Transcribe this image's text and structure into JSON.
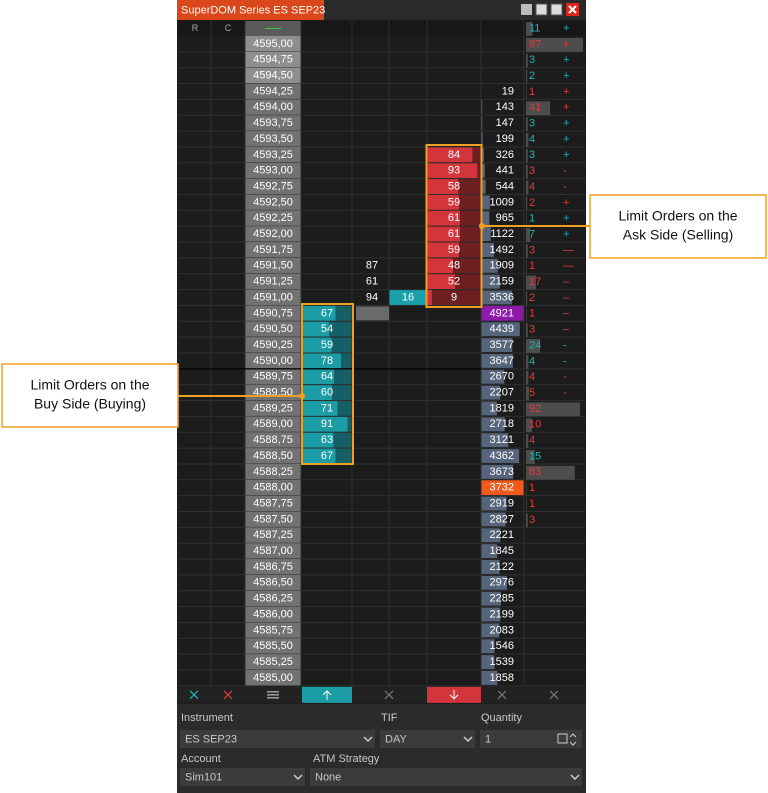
{
  "window": {
    "title": "SuperDOM Series ES SEP23"
  },
  "header": {
    "r": "R",
    "c": "C"
  },
  "rows": [
    {
      "price": "4595,00",
      "price_color": "#8e8e8e"
    },
    {
      "price": "4594,75",
      "price_color": "#8e8e8e"
    },
    {
      "price": "4594,50",
      "price_color": "#8e8e8e"
    },
    {
      "price": "4594,25",
      "volume": 19
    },
    {
      "price": "4594,00",
      "volume": 143
    },
    {
      "price": "4593,75",
      "volume": 147
    },
    {
      "price": "4593,50",
      "volume": 199
    },
    {
      "price": "4593,25",
      "ask": 84,
      "volume": 326
    },
    {
      "price": "4593,00",
      "ask": 93,
      "volume": 441
    },
    {
      "price": "4592,75",
      "ask": 58,
      "volume": 544
    },
    {
      "price": "4592,50",
      "ask": 59,
      "volume": 1009
    },
    {
      "price": "4592,25",
      "ask": 61,
      "volume": 965
    },
    {
      "price": "4592,00",
      "ask": 61,
      "volume": 1122
    },
    {
      "price": "4591,75",
      "ask": 59,
      "volume": 1492
    },
    {
      "price": "4591,50",
      "bid": 87,
      "ask": 48,
      "volume": 1909
    },
    {
      "price": "4591,25",
      "bid": 61,
      "ask": 52,
      "volume": 2159
    },
    {
      "price": "4591,00",
      "bid": 94,
      "level": 16,
      "ask": 9,
      "volume": 3536
    },
    {
      "price": "4590,75",
      "buy": 67,
      "volume": 4921,
      "volume_color": "#8e1aa8"
    },
    {
      "price": "4590,50",
      "buy": 54,
      "volume": 4439
    },
    {
      "price": "4590,25",
      "buy": 59,
      "volume": 3577
    },
    {
      "price": "4590,00",
      "buy": 78,
      "volume": 3647
    },
    {
      "price": "4589,75",
      "buy": 64,
      "volume": 2670
    },
    {
      "price": "4589,50",
      "buy": 60,
      "volume": 2207
    },
    {
      "price": "4589,25",
      "buy": 71,
      "volume": 1819
    },
    {
      "price": "4589,00",
      "buy": 91,
      "volume": 2718
    },
    {
      "price": "4588,75",
      "buy": 63,
      "volume": 3121
    },
    {
      "price": "4588,50",
      "buy": 67,
      "volume": 4362
    },
    {
      "price": "4588,25",
      "volume": 3673
    },
    {
      "price": "4588,00",
      "volume": 3732,
      "volume_color": "#f05a1a"
    },
    {
      "price": "4587,75",
      "volume": 2919
    },
    {
      "price": "4587,50",
      "volume": 2827
    },
    {
      "price": "4587,25",
      "volume": 2221
    },
    {
      "price": "4587,00",
      "volume": 1845
    },
    {
      "price": "4586,75",
      "volume": 2122
    },
    {
      "price": "4586,50",
      "volume": 2976
    },
    {
      "price": "4586,25",
      "volume": 2285
    },
    {
      "price": "4586,00",
      "volume": 2199
    },
    {
      "price": "4585,75",
      "volume": 2083
    },
    {
      "price": "4585,50",
      "volume": 1546
    },
    {
      "price": "4585,25",
      "volume": 1539
    },
    {
      "price": "4585,00",
      "volume": 1858
    }
  ],
  "trades": [
    {
      "count": 11,
      "sign": "+",
      "color": "#1fb5b5"
    },
    {
      "count": 97,
      "sign": "+",
      "color": "#e03c3c"
    },
    {
      "count": 3,
      "sign": "+",
      "color": "#1fb5b5"
    },
    {
      "count": 2,
      "sign": "+",
      "color": "#1fb5b5"
    },
    {
      "count": 1,
      "sign": "+",
      "color": "#e03c3c"
    },
    {
      "count": 41,
      "sign": "+",
      "color": "#e03c3c"
    },
    {
      "count": 3,
      "sign": "+",
      "color": "#1fb5b5"
    },
    {
      "count": 4,
      "sign": "+",
      "color": "#1fb5b5"
    },
    {
      "count": 3,
      "sign": "+",
      "color": "#1fb5b5"
    },
    {
      "count": 3,
      "sign": "-",
      "color": "#e03c3c"
    },
    {
      "count": 4,
      "sign": "-",
      "color": "#e03c3c"
    },
    {
      "count": 2,
      "sign": "+",
      "color": "#e03c3c"
    },
    {
      "count": 1,
      "sign": "+",
      "color": "#1fb5b5"
    },
    {
      "count": 7,
      "sign": "+",
      "color": "#1fb5b5"
    },
    {
      "count": 3,
      "sign": "—",
      "color": "#e03c3c"
    },
    {
      "count": 1,
      "sign": "—",
      "color": "#e03c3c"
    },
    {
      "count": 17,
      "sign": "–",
      "color": "#e03c3c"
    },
    {
      "count": 2,
      "sign": "–",
      "color": "#e03c3c"
    },
    {
      "count": 1,
      "sign": "–",
      "color": "#e03c3c"
    },
    {
      "count": 3,
      "sign": "–",
      "color": "#e03c3c"
    },
    {
      "count": 24,
      "sign": "-",
      "color": "#1fb5b5"
    },
    {
      "count": 4,
      "sign": "-",
      "color": "#1fb5b5"
    },
    {
      "count": 4,
      "sign": "-",
      "color": "#e03c3c"
    },
    {
      "count": 5,
      "sign": "-",
      "color": "#e03c3c"
    },
    {
      "count": 92,
      "color": "#e03c3c"
    },
    {
      "count": 10,
      "color": "#e03c3c"
    },
    {
      "count": 4,
      "color": "#e03c3c"
    },
    {
      "count": 15,
      "color": "#1fb5b5"
    },
    {
      "count": 83,
      "color": "#e03c3c"
    },
    {
      "count": 1,
      "color": "#e03c3c"
    },
    {
      "count": 1,
      "color": "#e03c3c"
    },
    {
      "count": 3,
      "color": "#e03c3c"
    }
  ],
  "form": {
    "instrument_label": "Instrument",
    "instrument": "ES SEP23",
    "tif_label": "TIF",
    "tif": "DAY",
    "quantity_label": "Quantity",
    "quantity": "1",
    "account_label": "Account",
    "account": "Sim101",
    "atm_label": "ATM Strategy",
    "atm": "None"
  },
  "annotations": {
    "ask": [
      "Limit Orders on the",
      "Ask Side (Selling)"
    ],
    "buy": [
      "Limit Orders on the",
      "Buy Side (Buying)"
    ]
  }
}
